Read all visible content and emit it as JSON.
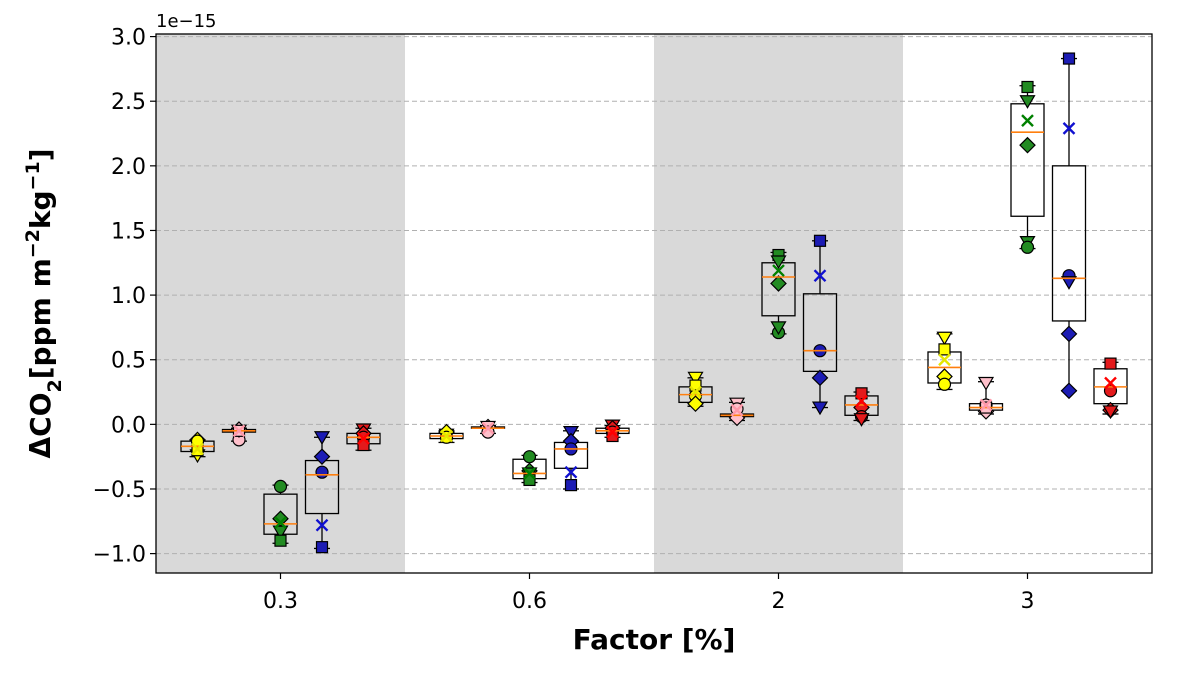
{
  "chart_data": {
    "type": "box",
    "xlabel": "Factor [%]",
    "ylabel_main": "ΔCO",
    "ylabel_sub": "2",
    "ylabel_rest": "[ppm m",
    "ylabel_sup1": "−2",
    "ylabel_mid": "kg",
    "ylabel_sup2": "−1",
    "ylabel_end": "]",
    "y_offset_label": "1e−15",
    "ylim": [
      -1.15,
      3.02
    ],
    "yticks": [
      -1.0,
      -0.5,
      0.0,
      0.5,
      1.0,
      1.5,
      2.0,
      2.5,
      3.0
    ],
    "ytick_labels": [
      "−1.0",
      "−0.5",
      "0.0",
      "0.5",
      "1.0",
      "1.5",
      "2.0",
      "2.5",
      "3.0"
    ],
    "grid": "horizontal dashed",
    "categories": [
      "0.3",
      "0.6",
      "2",
      "3"
    ],
    "shaded_groups": [
      0,
      2
    ],
    "colors": {
      "shade": "#d9d9d9",
      "grid": "#b0b0b0",
      "median": "#ff7f0e",
      "yellow": "#ffff00",
      "pink": "#ffc0cb",
      "green": "#228b22",
      "blue": "#1c1cb4",
      "red": "#e31a1c",
      "mean_yellow": "#e6e600",
      "mean_pink": "#ff99aa",
      "mean_green": "#008000",
      "mean_blue": "#1010d0",
      "mean_red": "#ff0000"
    },
    "series": [
      {
        "color": "yellow",
        "mean_color": "mean_yellow",
        "offset": -2
      },
      {
        "color": "pink",
        "mean_color": "mean_pink",
        "offset": -1
      },
      {
        "color": "green",
        "mean_color": "mean_green",
        "offset": 0
      },
      {
        "color": "blue",
        "mean_color": "mean_blue",
        "offset": 1
      },
      {
        "color": "red",
        "mean_color": "mean_red",
        "offset": 2
      }
    ],
    "boxes": [
      [
        {
          "whislo": -0.25,
          "q1": -0.21,
          "med": -0.17,
          "q3": -0.13,
          "whishi": -0.12,
          "mean": -0.19,
          "points": [
            {
              "m": "v",
              "y": -0.24
            },
            {
              "m": "s",
              "y": -0.2
            },
            {
              "m": "D",
              "y": -0.12
            },
            {
              "m": "o",
              "y": -0.13
            }
          ]
        },
        {
          "whislo": -0.13,
          "q1": -0.06,
          "med": -0.05,
          "q3": -0.04,
          "whishi": -0.03,
          "mean": -0.05,
          "points": [
            {
              "m": "v",
              "y": -0.05
            },
            {
              "m": "o",
              "y": -0.12
            },
            {
              "m": "D",
              "y": -0.04
            },
            {
              "m": "s",
              "y": -0.05
            }
          ]
        },
        {
          "whislo": -0.92,
          "q1": -0.85,
          "med": -0.77,
          "q3": -0.54,
          "whishi": -0.47,
          "mean": -0.76,
          "points": [
            {
              "m": "o",
              "y": -0.48
            },
            {
              "m": "D",
              "y": -0.73
            },
            {
              "m": "v",
              "y": -0.83
            },
            {
              "m": "s",
              "y": -0.9
            }
          ]
        },
        {
          "whislo": -0.96,
          "q1": -0.69,
          "med": -0.39,
          "q3": -0.28,
          "whishi": -0.1,
          "mean": -0.78,
          "points": [
            {
              "m": "v",
              "y": -0.1
            },
            {
              "m": "D",
              "y": -0.25
            },
            {
              "m": "o",
              "y": -0.37
            },
            {
              "m": "s",
              "y": -0.95
            }
          ]
        },
        {
          "whislo": -0.2,
          "q1": -0.15,
          "med": -0.1,
          "q3": -0.07,
          "whishi": -0.03,
          "mean": -0.11,
          "points": [
            {
              "m": "v",
              "y": -0.04
            },
            {
              "m": "D",
              "y": -0.07
            },
            {
              "m": "o",
              "y": -0.1
            },
            {
              "m": "s",
              "y": -0.16
            }
          ]
        }
      ],
      [
        {
          "whislo": -0.14,
          "q1": -0.11,
          "med": -0.09,
          "q3": -0.07,
          "whishi": -0.05,
          "mean": -0.09,
          "points": [
            {
              "m": "v",
              "y": -0.08
            },
            {
              "m": "s",
              "y": -0.09
            },
            {
              "m": "D",
              "y": -0.06
            },
            {
              "m": "o",
              "y": -0.1
            }
          ]
        },
        {
          "whislo": -0.07,
          "q1": -0.03,
          "med": -0.03,
          "q3": -0.02,
          "whishi": -0.01,
          "mean": -0.03,
          "points": [
            {
              "m": "D",
              "y": -0.02
            },
            {
              "m": "v",
              "y": -0.02
            },
            {
              "m": "o",
              "y": -0.06
            }
          ]
        },
        {
          "whislo": -0.45,
          "q1": -0.42,
          "med": -0.38,
          "q3": -0.27,
          "whishi": -0.24,
          "mean": -0.38,
          "points": [
            {
              "m": "o",
              "y": -0.25
            },
            {
              "m": "D",
              "y": -0.36
            },
            {
              "m": "v",
              "y": -0.38
            },
            {
              "m": "s",
              "y": -0.43
            }
          ]
        },
        {
          "whislo": -0.5,
          "q1": -0.34,
          "med": -0.19,
          "q3": -0.14,
          "whishi": -0.05,
          "mean": -0.37,
          "points": [
            {
              "m": "v",
              "y": -0.06
            },
            {
              "m": "D",
              "y": -0.13
            },
            {
              "m": "o",
              "y": -0.19
            },
            {
              "m": "s",
              "y": -0.47
            }
          ]
        },
        {
          "whislo": -0.1,
          "q1": -0.07,
          "med": -0.05,
          "q3": -0.03,
          "whishi": -0.01,
          "mean": -0.06,
          "points": [
            {
              "m": "v",
              "y": -0.01
            },
            {
              "m": "D",
              "y": -0.03
            },
            {
              "m": "o",
              "y": -0.06
            },
            {
              "m": "s",
              "y": -0.09
            }
          ]
        }
      ],
      [
        {
          "whislo": 0.14,
          "q1": 0.17,
          "med": 0.23,
          "q3": 0.29,
          "whishi": 0.36,
          "mean": 0.25,
          "points": [
            {
              "m": "v",
              "y": 0.36
            },
            {
              "m": "s",
              "y": 0.3
            },
            {
              "m": "o",
              "y": 0.22
            },
            {
              "m": "D",
              "y": 0.16
            }
          ]
        },
        {
          "whislo": 0.03,
          "q1": 0.06,
          "med": 0.07,
          "q3": 0.08,
          "whishi": 0.17,
          "mean": 0.11,
          "points": [
            {
              "m": "v",
              "y": 0.16
            },
            {
              "m": "o",
              "y": 0.12
            },
            {
              "m": "D",
              "y": 0.05
            }
          ]
        },
        {
          "whislo": 0.7,
          "q1": 0.84,
          "med": 1.14,
          "q3": 1.25,
          "whishi": 1.33,
          "mean": 1.19,
          "points": [
            {
              "m": "s",
              "y": 1.31
            },
            {
              "m": "v",
              "y": 1.26
            },
            {
              "m": "D",
              "y": 1.09
            },
            {
              "m": "o",
              "y": 0.71
            },
            {
              "m": "v",
              "y": 0.75
            }
          ]
        },
        {
          "whislo": 0.13,
          "q1": 0.41,
          "med": 0.57,
          "q3": 1.01,
          "whishi": 1.42,
          "mean": 1.15,
          "points": [
            {
              "m": "s",
              "y": 1.42
            },
            {
              "m": "o",
              "y": 0.57
            },
            {
              "m": "D",
              "y": 0.36
            },
            {
              "m": "v",
              "y": 0.13
            }
          ]
        },
        {
          "whislo": 0.03,
          "q1": 0.07,
          "med": 0.15,
          "q3": 0.22,
          "whishi": 0.25,
          "mean": 0.18,
          "points": [
            {
              "m": "s",
              "y": 0.24
            },
            {
              "m": "D",
              "y": 0.13
            },
            {
              "m": "o",
              "y": 0.06
            },
            {
              "m": "v",
              "y": 0.04
            }
          ]
        }
      ],
      [
        {
          "whislo": 0.27,
          "q1": 0.32,
          "med": 0.44,
          "q3": 0.56,
          "whishi": 0.7,
          "mean": 0.5,
          "points": [
            {
              "m": "v",
              "y": 0.67
            },
            {
              "m": "s",
              "y": 0.58
            },
            {
              "m": "D",
              "y": 0.37
            },
            {
              "m": "o",
              "y": 0.31
            }
          ]
        },
        {
          "whislo": 0.08,
          "q1": 0.11,
          "med": 0.13,
          "q3": 0.16,
          "whishi": 0.33,
          "mean": 0.15,
          "points": [
            {
              "m": "v",
              "y": 0.32
            },
            {
              "m": "o",
              "y": 0.15
            },
            {
              "m": "D",
              "y": 0.1
            },
            {
              "m": "s",
              "y": 0.13
            }
          ]
        },
        {
          "whislo": 1.36,
          "q1": 1.61,
          "med": 2.26,
          "q3": 2.48,
          "whishi": 2.62,
          "mean": 2.35,
          "points": [
            {
              "m": "s",
              "y": 2.61
            },
            {
              "m": "v",
              "y": 2.5
            },
            {
              "m": "D",
              "y": 2.16
            },
            {
              "m": "v",
              "y": 1.41
            },
            {
              "m": "o",
              "y": 1.37
            }
          ]
        },
        {
          "whislo": 0.26,
          "q1": 0.8,
          "med": 1.13,
          "q3": 2.0,
          "whishi": 2.83,
          "mean": 2.29,
          "points": [
            {
              "m": "s",
              "y": 2.83
            },
            {
              "m": "o",
              "y": 1.15
            },
            {
              "m": "v",
              "y": 1.1
            },
            {
              "m": "D",
              "y": 0.7
            },
            {
              "m": "D",
              "y": 0.26
            }
          ]
        },
        {
          "whislo": 0.08,
          "q1": 0.16,
          "med": 0.29,
          "q3": 0.43,
          "whishi": 0.48,
          "mean": 0.32,
          "points": [
            {
              "m": "s",
              "y": 0.47
            },
            {
              "m": "o",
              "y": 0.26
            },
            {
              "m": "D",
              "y": 0.11
            },
            {
              "m": "v",
              "y": 0.1
            }
          ]
        }
      ]
    ]
  }
}
